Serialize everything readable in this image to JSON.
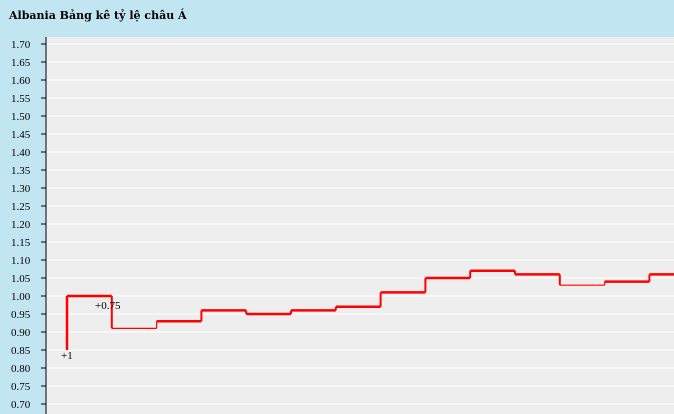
{
  "header": {
    "title": "Albania Bảng kê tỷ lệ châu Á"
  },
  "chart_data": {
    "type": "line",
    "step": true,
    "title": "",
    "xlabel": "",
    "ylabel": "",
    "ylim": [
      0.68,
      1.72
    ],
    "yticks": [
      "0.70",
      "0.75",
      "0.80",
      "0.85",
      "0.90",
      "0.95",
      "1.00",
      "1.05",
      "1.10",
      "1.15",
      "1.20",
      "1.25",
      "1.30",
      "1.35",
      "1.40",
      "1.45",
      "1.50",
      "1.55",
      "1.60",
      "1.65",
      "1.70"
    ],
    "grid": true,
    "series": [
      {
        "color": "#ff0000",
        "values": [
          0.85,
          1.0,
          0.91,
          0.93,
          0.96,
          0.95,
          0.96,
          0.97,
          1.01,
          1.05,
          1.07,
          1.06,
          1.03,
          1.04,
          1.06
        ]
      }
    ],
    "annotations": [
      {
        "text": "+1",
        "index": 0
      },
      {
        "text": "+0.75",
        "index": 1
      }
    ]
  },
  "colors": {
    "background": "#c2e6f1",
    "plot": "#eeeeee",
    "line": "#ff0000"
  }
}
